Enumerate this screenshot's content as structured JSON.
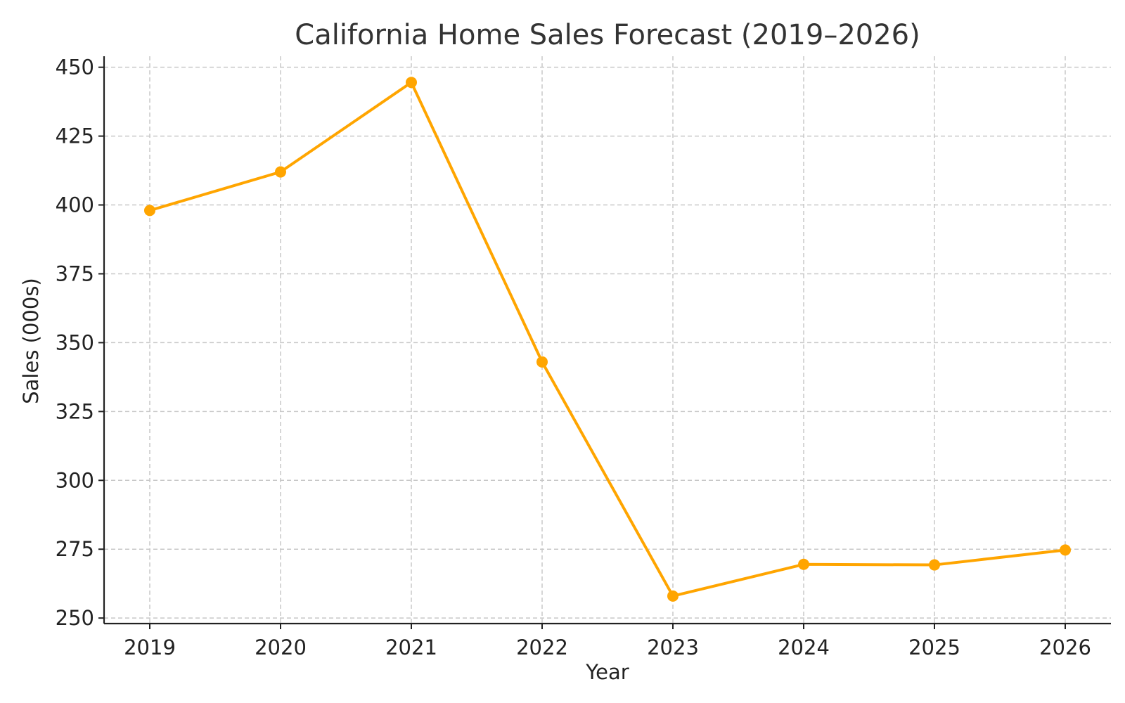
{
  "chart_data": {
    "type": "line",
    "title": "California Home Sales Forecast (2019–2026)",
    "xlabel": "Year",
    "ylabel": "Sales (000s)",
    "x": [
      "2019",
      "2020",
      "2021",
      "2022",
      "2023",
      "2024",
      "2025",
      "2026"
    ],
    "series": [
      {
        "values": [
          398,
          412,
          444.5,
          343,
          258,
          269.5,
          269.3,
          274.7
        ]
      }
    ],
    "ylim": [
      248,
      454
    ],
    "yticks": [
      250,
      275,
      300,
      325,
      350,
      375,
      400,
      425,
      450
    ],
    "grid": true,
    "line_color": "#FFA500"
  }
}
